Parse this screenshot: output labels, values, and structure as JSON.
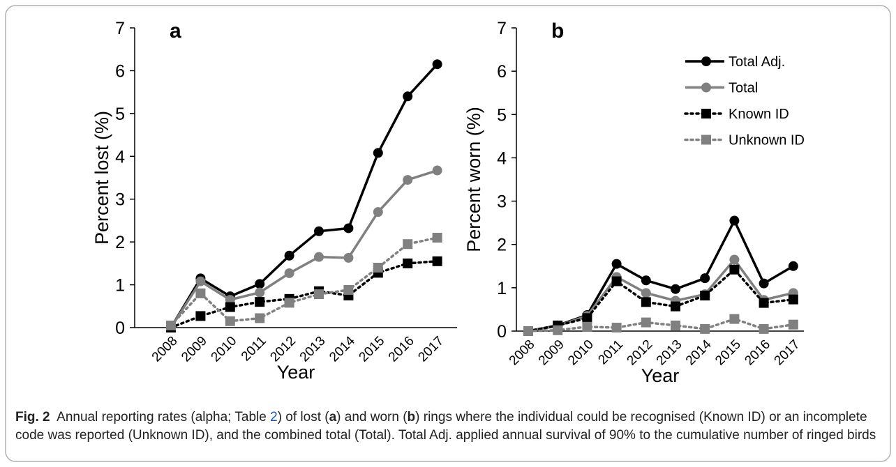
{
  "chart_data": [
    {
      "type": "line",
      "panel_label": "a",
      "ylabel": "Percent lost (%)",
      "xlabel": "Year",
      "categories": [
        "2008",
        "2009",
        "2010",
        "2011",
        "2012",
        "2013",
        "2014",
        "2015",
        "2016",
        "2017"
      ],
      "ylim": [
        0,
        7
      ],
      "yticks": [
        0,
        1,
        2,
        3,
        4,
        5,
        6,
        7
      ],
      "series": [
        {
          "color": "#000000",
          "dash": "solid",
          "marker": "circle",
          "values": [
            0,
            1.15,
            0.73,
            1.02,
            1.68,
            2.25,
            2.32,
            4.08,
            5.4,
            6.15
          ]
        },
        {
          "color": "#808080",
          "dash": "solid",
          "marker": "circle",
          "values": [
            0,
            1.08,
            0.65,
            0.82,
            1.27,
            1.65,
            1.63,
            2.7,
            3.45,
            3.67
          ]
        },
        {
          "color": "#000000",
          "dash": "dotted",
          "marker": "square",
          "values": [
            0,
            0.27,
            0.48,
            0.6,
            0.67,
            0.85,
            0.75,
            1.28,
            1.5,
            1.55
          ]
        },
        {
          "color": "#808080",
          "dash": "dotted",
          "marker": "square",
          "values": [
            0.05,
            0.8,
            0.15,
            0.22,
            0.58,
            0.78,
            0.88,
            1.4,
            1.95,
            2.1
          ]
        }
      ]
    },
    {
      "type": "line",
      "panel_label": "b",
      "ylabel": "Percent worn (%)",
      "xlabel": "Year",
      "categories": [
        "2008",
        "2009",
        "2010",
        "2011",
        "2012",
        "2013",
        "2014",
        "2015",
        "2016",
        "2017"
      ],
      "ylim": [
        0,
        7
      ],
      "yticks": [
        0,
        1,
        2,
        3,
        4,
        5,
        6,
        7
      ],
      "legend": "upper right",
      "series": [
        {
          "name": "Total Adj.",
          "color": "#000000",
          "dash": "solid",
          "marker": "circle",
          "values": [
            0,
            0.13,
            0.37,
            1.55,
            1.17,
            0.97,
            1.22,
            2.55,
            1.1,
            1.5
          ]
        },
        {
          "name": "Total",
          "color": "#808080",
          "dash": "solid",
          "marker": "circle",
          "values": [
            0,
            0.12,
            0.35,
            1.25,
            0.88,
            0.7,
            0.85,
            1.65,
            0.72,
            0.88
          ]
        },
        {
          "name": "Known ID",
          "color": "#000000",
          "dash": "dotted",
          "marker": "square",
          "values": [
            0,
            0.13,
            0.3,
            1.15,
            0.67,
            0.57,
            0.82,
            1.42,
            0.65,
            0.73
          ]
        },
        {
          "name": "Unknown ID",
          "color": "#808080",
          "dash": "dotted",
          "marker": "square",
          "values": [
            0,
            0.02,
            0.1,
            0.08,
            0.2,
            0.13,
            0.05,
            0.28,
            0.05,
            0.15
          ]
        }
      ]
    }
  ],
  "caption": {
    "label": "Fig. 2",
    "segments": [
      "Annual reporting rates (alpha; Table ",
      "2",
      ") of lost (",
      "a",
      ") and worn (",
      "b",
      ") rings where the individual could be recognised (Known ID) or an incomplete code was reported (Unknown ID), and the combined total (Total). Total Adj. applied annual survival of 90% to the cumulative number of ringed birds"
    ]
  }
}
